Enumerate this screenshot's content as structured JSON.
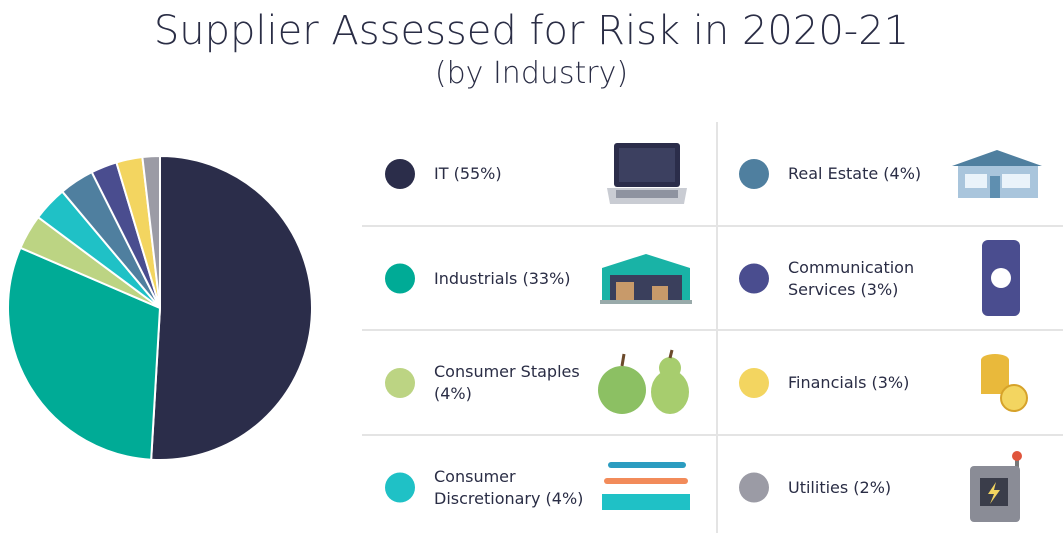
{
  "chart_data": {
    "type": "pie",
    "title": "Supplier Assessed for Risk in 2020-21",
    "subtitle": "(by Industry)",
    "categories": [
      "IT (55%)",
      "Industrials (33%)",
      "Consumer Staples (4%)",
      "Consumer Discretionary (4%)",
      "Real Estate (4%)",
      "Communication Services (3%)",
      "Financials (3%)",
      "Utilities (2%)"
    ],
    "values": [
      55,
      33,
      4,
      4,
      4,
      3,
      3,
      2
    ],
    "colors": [
      "#2b2d4a",
      "#00ab96",
      "#bcd483",
      "#1fc1c6",
      "#4f7f9f",
      "#4a4d8f",
      "#f3d560",
      "#9b9ba5"
    ]
  }
}
